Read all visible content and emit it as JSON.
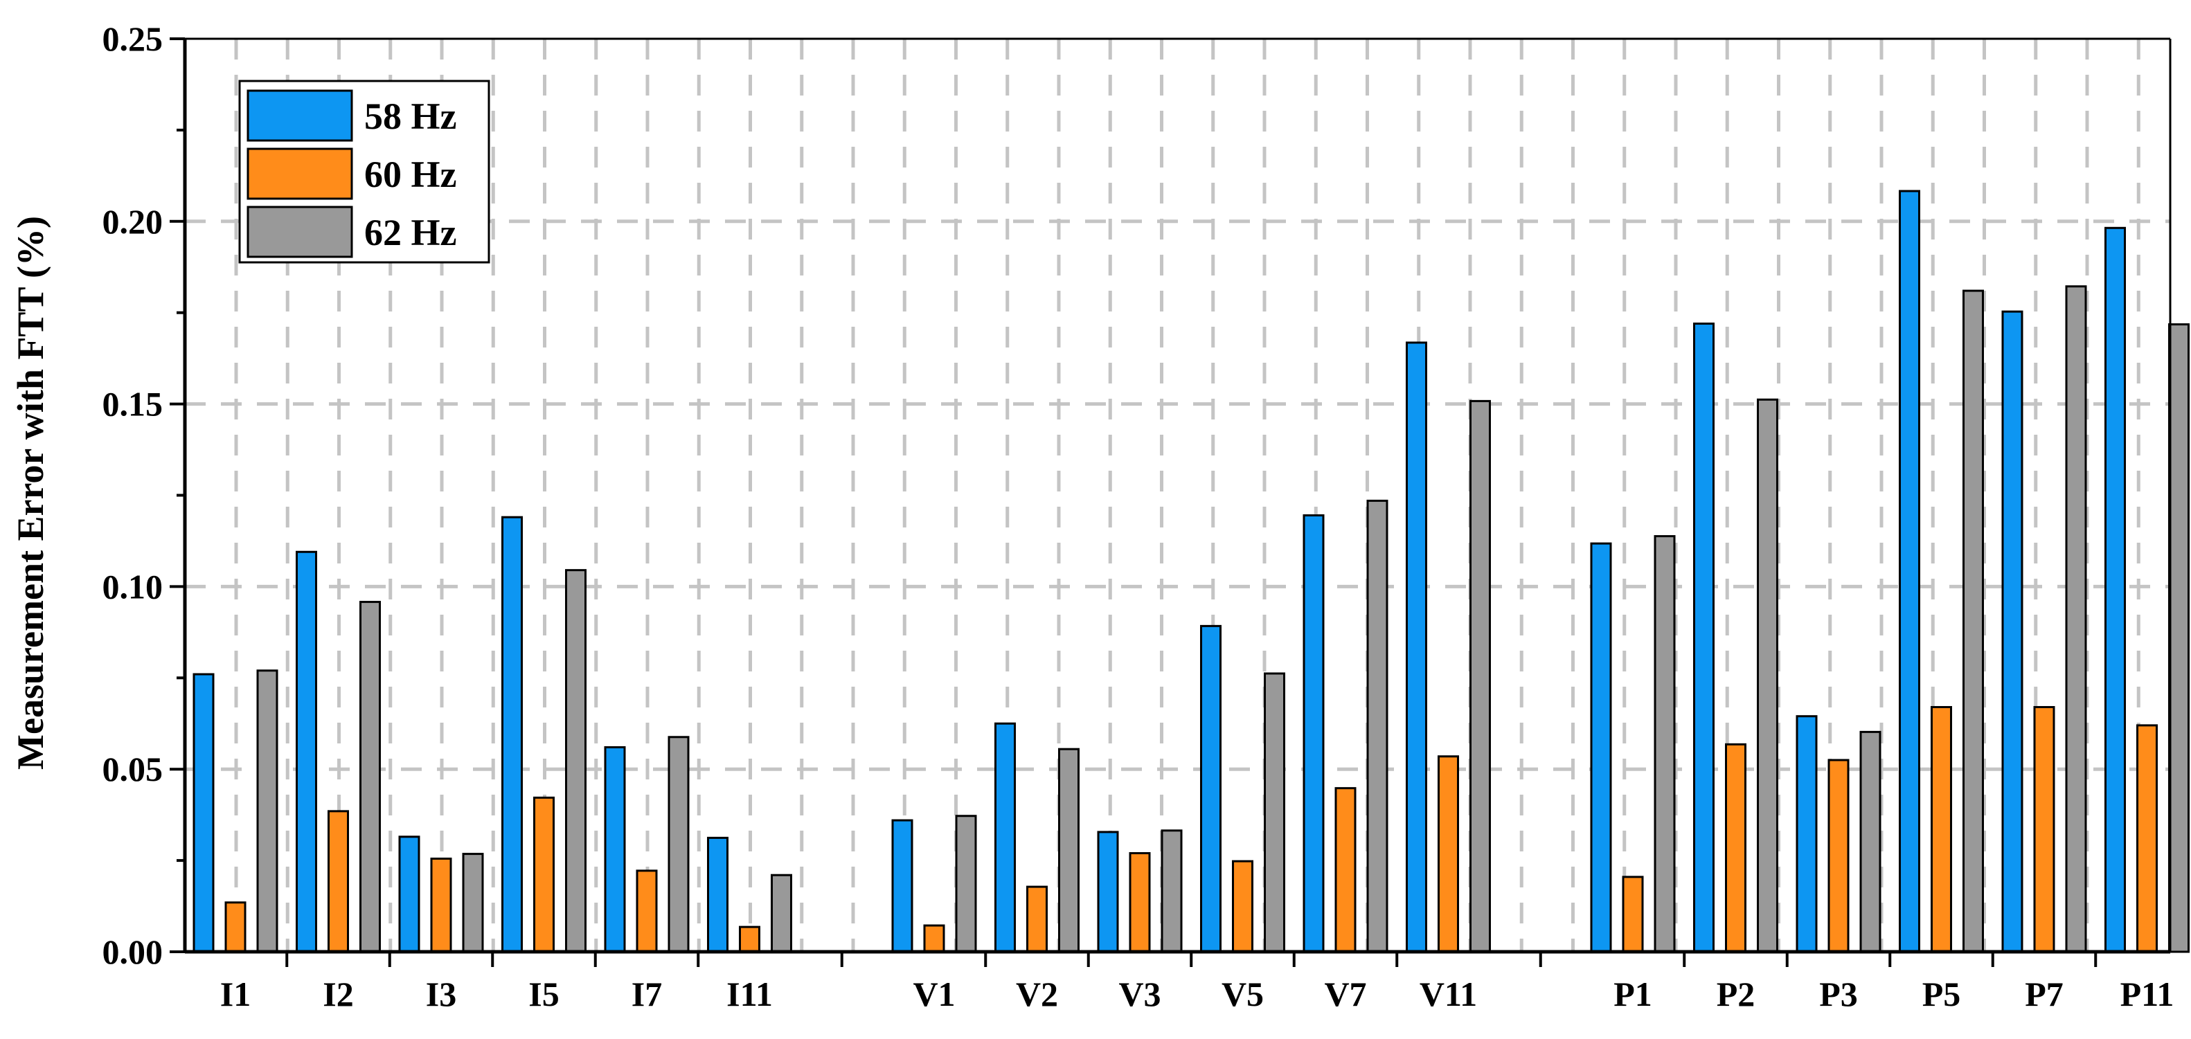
{
  "chart_data": {
    "type": "bar",
    "title": "",
    "xlabel": "",
    "ylabel": "Measurement Error with FTT (%)",
    "ylim": [
      0,
      0.25
    ],
    "yticks": [
      "0.00",
      "0.05",
      "0.10",
      "0.15",
      "0.20",
      "0.25"
    ],
    "grid": true,
    "legend_position": "top-left",
    "categories": [
      "I1",
      "I2",
      "I3",
      "I5",
      "I7",
      "I11",
      "V1",
      "V2",
      "V3",
      "V5",
      "V7",
      "V11",
      "P1",
      "P2",
      "P3",
      "P5",
      "P7",
      "P11"
    ],
    "groups": [
      [
        "I1",
        "I2",
        "I3",
        "I5",
        "I7",
        "I11"
      ],
      [
        "V1",
        "V2",
        "V3",
        "V5",
        "V7",
        "V11"
      ],
      [
        "P1",
        "P2",
        "P3",
        "P5",
        "P7",
        "P11"
      ]
    ],
    "series": [
      {
        "name": "58 Hz",
        "color": "#0d96f2",
        "values": [
          0.076,
          0.1095,
          0.0315,
          0.119,
          0.056,
          0.0312,
          0.036,
          0.0625,
          0.0328,
          0.0892,
          0.1195,
          0.1668,
          0.1118,
          0.172,
          0.0645,
          0.2083,
          0.1753,
          0.1982
        ]
      },
      {
        "name": "60 Hz",
        "color": "#ff8c1a",
        "values": [
          0.0135,
          0.0385,
          0.0255,
          0.0422,
          0.0222,
          0.0068,
          0.0072,
          0.0178,
          0.027,
          0.0248,
          0.0448,
          0.0535,
          0.0205,
          0.0568,
          0.0525,
          0.067,
          0.067,
          0.062
        ]
      },
      {
        "name": "62 Hz",
        "color": "#999999",
        "values": [
          0.077,
          0.0958,
          0.0268,
          0.1045,
          0.0588,
          0.021,
          0.0372,
          0.0555,
          0.0332,
          0.0762,
          0.1235,
          0.1508,
          0.1138,
          0.1512,
          0.0602,
          0.181,
          0.1822,
          0.1718
        ]
      }
    ]
  }
}
